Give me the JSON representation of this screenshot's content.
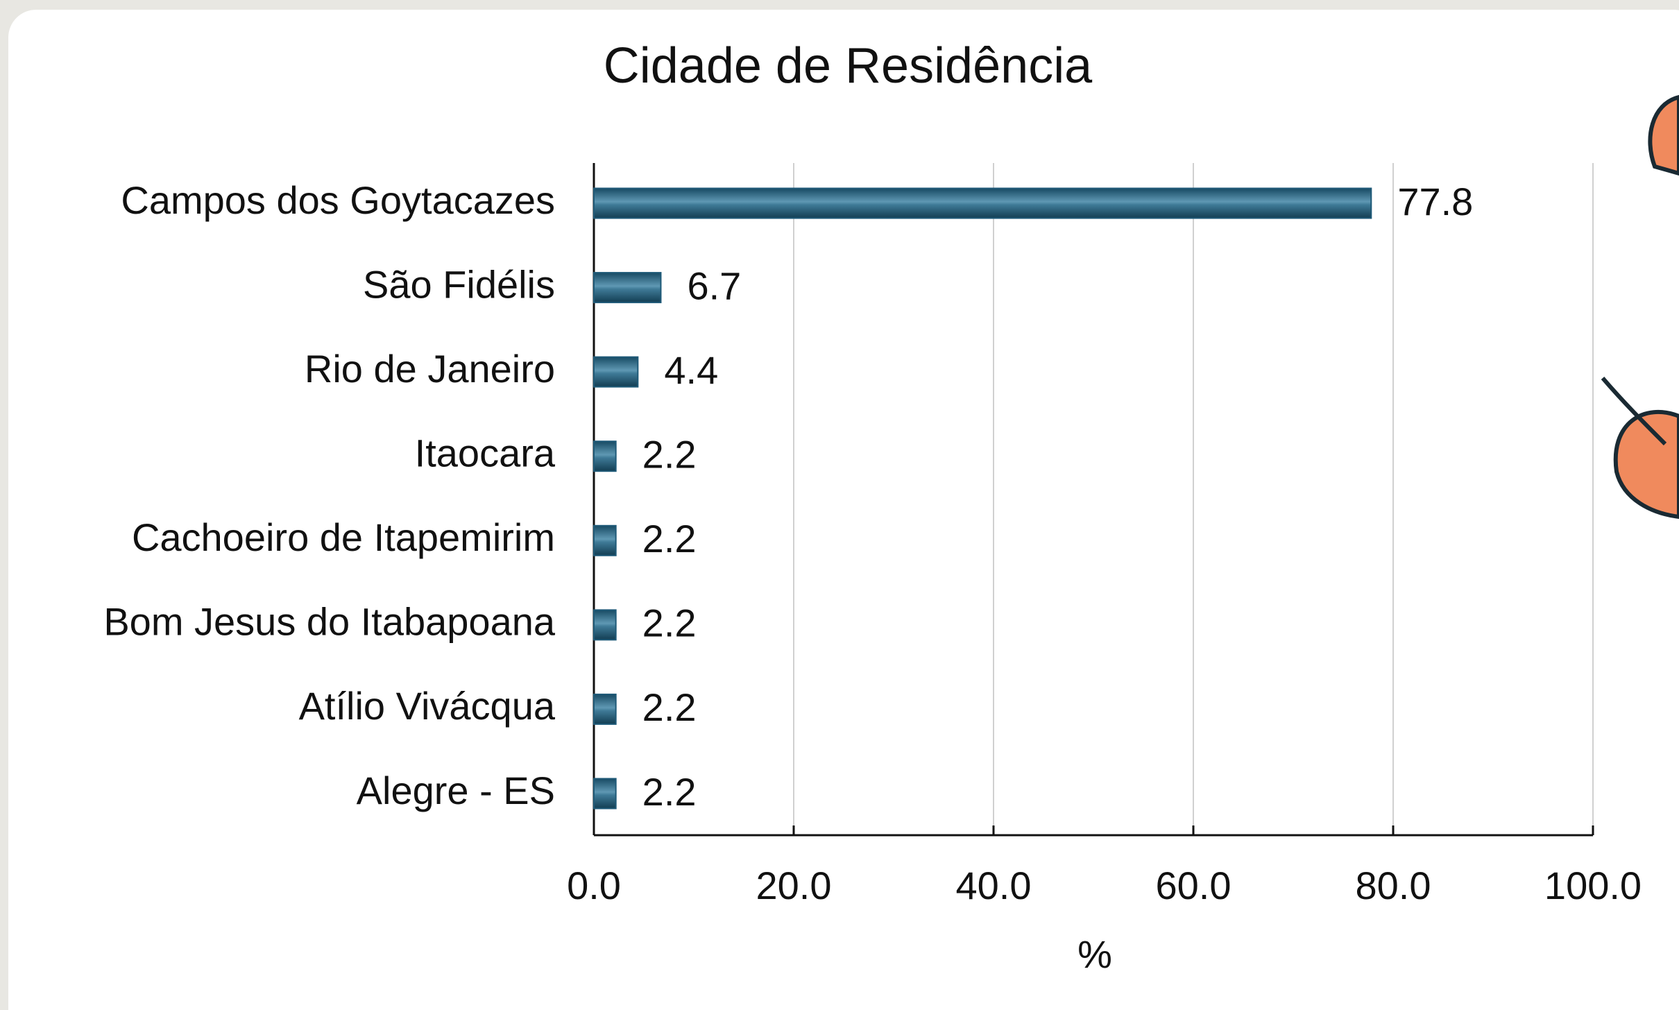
{
  "chart_data": {
    "type": "bar",
    "orientation": "horizontal",
    "title": "Cidade de Residência",
    "x_label": "%",
    "categories": [
      "Campos dos Goytacazes",
      "São Fidélis",
      "Rio de Janeiro",
      "Itaocara",
      "Cachoeiro de Itapemirim",
      "Bom Jesus do Itabapoana",
      "Atílio Vivácqua",
      "Alegre - ES"
    ],
    "values": [
      77.8,
      6.7,
      4.4,
      2.2,
      2.2,
      2.2,
      2.2,
      2.2
    ],
    "color": "#1f5a78",
    "xlim": [
      0,
      100
    ],
    "xticks": [
      {
        "value": 0,
        "label": "0.0"
      },
      {
        "value": 20,
        "label": "20.0"
      },
      {
        "value": 40,
        "label": "40.0"
      },
      {
        "value": 60,
        "label": "60.0"
      },
      {
        "value": 80,
        "label": "80.0"
      },
      {
        "value": 100,
        "label": "100.0"
      }
    ],
    "grid": true
  }
}
